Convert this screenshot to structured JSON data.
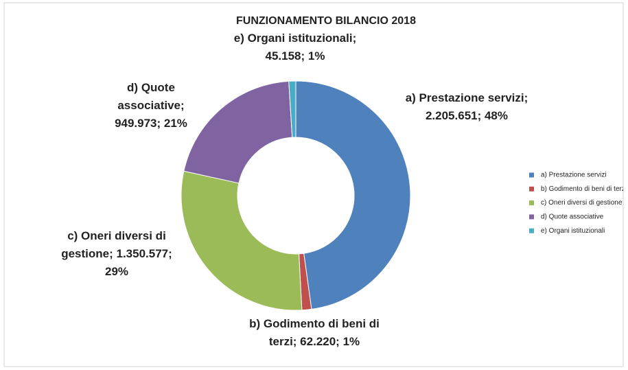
{
  "chart_data": {
    "type": "donut",
    "title": "FUNZIONAMENTO BILANCIO 2018",
    "categories": [
      "a) Prestazione servizi",
      "b) Godimento di beni di terzi",
      "c) Oneri diversi di gestione",
      "d) Quote associative",
      "e) Organi istituzionali"
    ],
    "values": [
      2205651,
      62220,
      1350577,
      949973,
      45158
    ],
    "value_labels": [
      "a) Prestazione servizi; 2.205.651; 48%",
      "b) Godimento di beni di terzi; 62.220; 1%",
      "c) Oneri diversi di gestione; 1.350.577; 29%",
      "d) Quote associative; 949.973; 21%",
      "e) Organi istituzionali; 45.158; 1%"
    ],
    "colors": [
      "#4f81bd",
      "#c0504d",
      "#9bbb59",
      "#8064a2",
      "#4bacc6"
    ],
    "legend": "right"
  }
}
